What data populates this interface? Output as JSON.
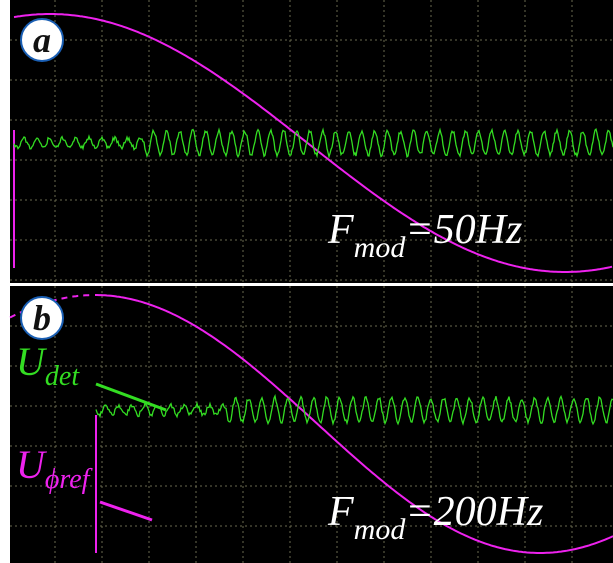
{
  "panels": [
    {
      "label": "a",
      "frequency": {
        "symbol": "F",
        "subscript": "mod",
        "value": "=50Hz"
      }
    },
    {
      "label": "b",
      "frequency": {
        "symbol": "F",
        "subscript": "mod",
        "value": "=200Hz"
      },
      "detector": {
        "symbol": "U",
        "subscript": "det"
      },
      "reference": {
        "symbol": "U",
        "subscript": "ϕref"
      }
    }
  ]
}
